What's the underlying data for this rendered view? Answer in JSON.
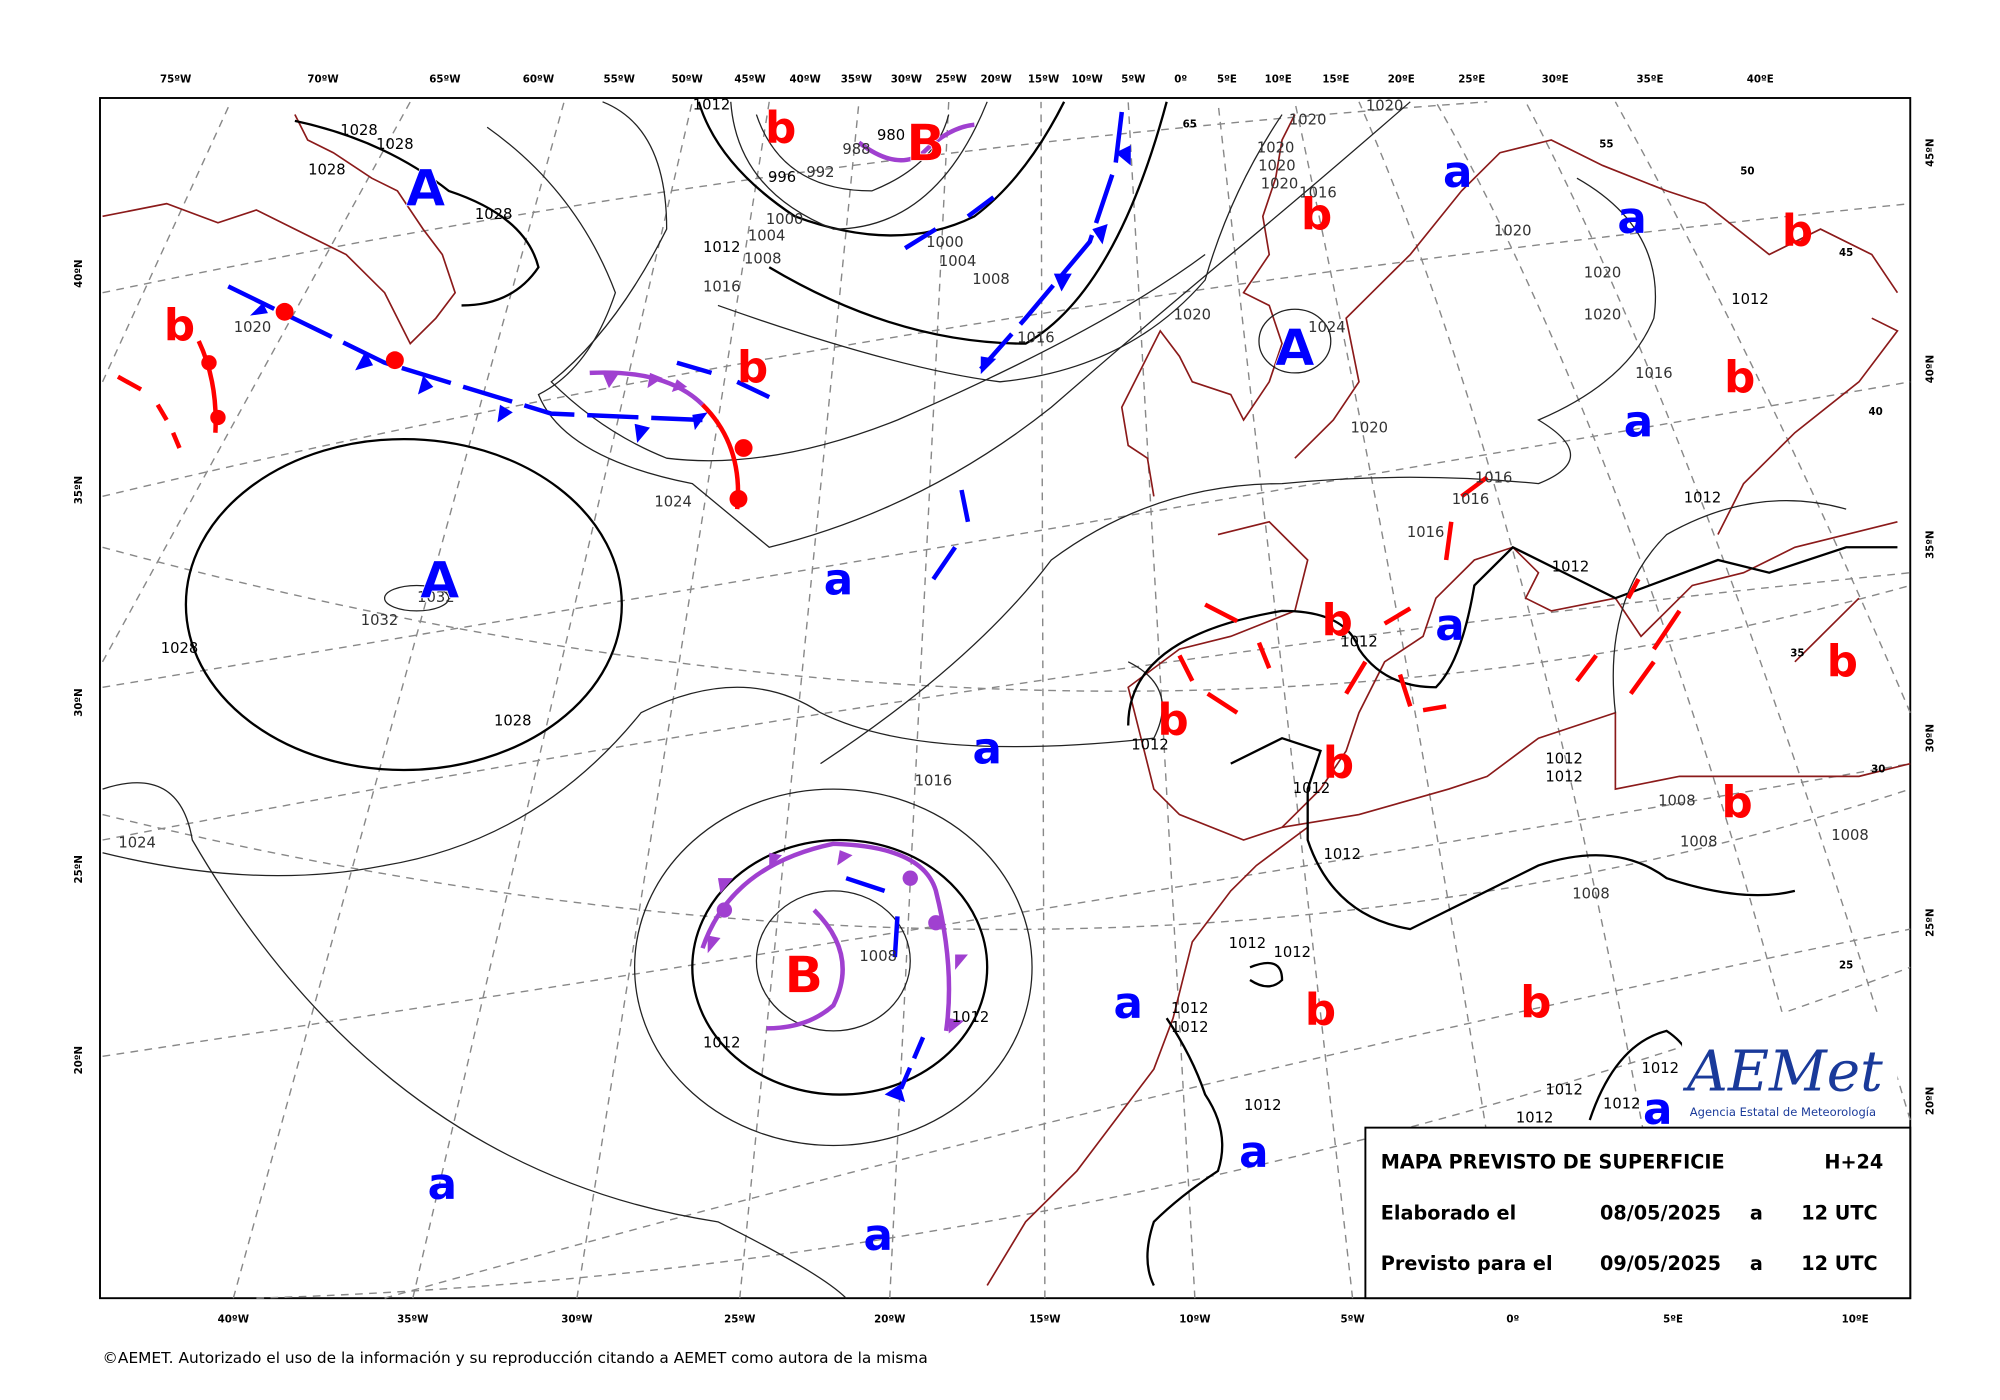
{
  "longitude_labels_top": [
    "75ºW",
    "70ºW",
    "65ºW",
    "60ºW",
    "55ºW",
    "50ºW",
    "45ºW",
    "40ºW",
    "35ºW",
    "30ºW",
    "25ºW",
    "20ºW",
    "15ºW",
    "10ºW",
    "5ºW",
    "0º",
    "5ºE",
    "10ºE",
    "15ºE",
    "20ºE",
    "25ºE",
    "30ºE",
    "35ºE",
    "40ºE"
  ],
  "longitude_labels_bottom": [
    "40ºW",
    "35ºW",
    "30ºW",
    "25ºW",
    "20ºW",
    "15ºW",
    "10ºW",
    "5ºW",
    "0º",
    "5ºE",
    "10ºE"
  ],
  "latitude_labels_left": [
    "40ºN",
    "35ºN",
    "30ºN",
    "25ºN",
    "20ºN"
  ],
  "latitude_labels_right": [
    "45ºN",
    "40ºN",
    "35ºN",
    "30ºN",
    "25ºN",
    "20ºN"
  ],
  "inner_latitude_labels": [
    65,
    55,
    50,
    45,
    40,
    35,
    30,
    25
  ],
  "isobar_labels": [
    1028,
    1028,
    1028,
    1028,
    1020,
    1032,
    1032,
    1028,
    1028,
    1024,
    1016,
    1012,
    1008,
    1004,
    1000,
    996,
    992,
    988,
    980,
    1000,
    1004,
    1008,
    1016,
    1012,
    1020,
    1020,
    1020,
    1020,
    1020,
    1016,
    1020,
    1020,
    1020,
    1020,
    1024,
    1016,
    1012,
    1020,
    1016,
    1016,
    1016,
    1012,
    1012,
    1012,
    1012,
    1012,
    1012,
    1012,
    1008,
    1008,
    1008,
    1008,
    1012,
    1016,
    1024,
    1008,
    1012,
    1012,
    1012,
    1012,
    1012,
    1012,
    1012,
    1012,
    1012,
    1012,
    1012
  ],
  "highs": [
    "A",
    "A",
    "A"
  ],
  "lows": [
    "B",
    "B"
  ],
  "relative_highs": [
    "a",
    "a",
    "a",
    "a",
    "a",
    "a",
    "a",
    "a",
    "a",
    "a",
    "a"
  ],
  "relative_lows": [
    "b",
    "b",
    "b",
    "b",
    "b",
    "b",
    "b",
    "b",
    "b",
    "b",
    "b",
    "b",
    "b"
  ],
  "info_box": {
    "title": "MAPA PREVISTO DE SUPERFICIE",
    "step": "H+24",
    "rows": [
      [
        "Elaborado el",
        "08/05/2025",
        "a",
        "12 UTC"
      ],
      [
        "Previsto para el",
        "09/05/2025",
        "a",
        "12 UTC"
      ]
    ]
  },
  "logo": {
    "name": "AEMet",
    "subtitle": "Agencia Estatal de Meteorología"
  },
  "footer": "©AEMET. Autorizado el uso de la información y su reproducción citando a AEMET como autora de la misma"
}
